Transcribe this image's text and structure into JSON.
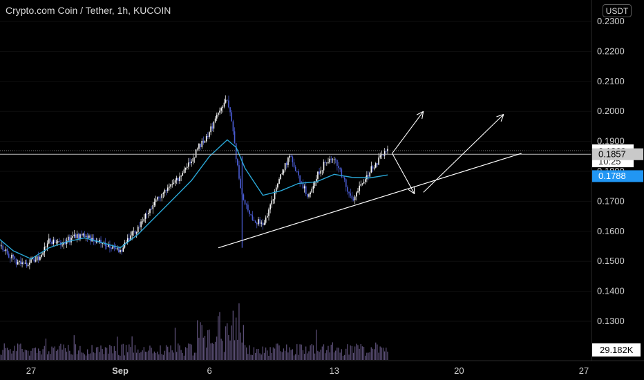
{
  "header": {
    "title": "Crypto.com Coin / Tether, 1h, KUCOIN",
    "currency": "USDT"
  },
  "labels": {
    "last_price": "0.1869",
    "countdown": "10:25",
    "line_price": "0.1857",
    "ma_price": "0.1788",
    "volume": "29.182K"
  },
  "colors": {
    "background": "#000000",
    "candle_up": "#ffffff",
    "candle_down": "#4b5dd6",
    "ma_line": "#2aa8d8",
    "volume_bar": "#7a6a9e",
    "drawings": "#ffffff",
    "ma_badge": "#2196f3",
    "line_badge": "#c9c9c9"
  },
  "chart_data": {
    "type": "candlestick",
    "title": "Crypto.com Coin / Tether, 1h, KUCOIN",
    "y_axis": {
      "side": "right",
      "range": [
        0.1175,
        0.2365
      ],
      "ticks": [
        "0.2300",
        "0.2200",
        "0.2100",
        "0.2000",
        "0.1900",
        "0.1800",
        "0.1700",
        "0.1600",
        "0.1500",
        "0.1400",
        "0.1300"
      ]
    },
    "x_axis": {
      "ticks": [
        "27",
        "Sep",
        "6",
        "13",
        "20",
        "27"
      ]
    },
    "price_path": [
      {
        "date": "Aug 25 00:00",
        "price": 0.1575
      },
      {
        "date": "Aug 25 12:00",
        "price": 0.154
      },
      {
        "date": "Aug 26 00:00",
        "price": 0.1505
      },
      {
        "date": "Aug 26 12:00",
        "price": 0.149
      },
      {
        "date": "Aug 27 00:00",
        "price": 0.15
      },
      {
        "date": "Aug 27 12:00",
        "price": 0.1515
      },
      {
        "date": "Aug 28 00:00",
        "price": 0.1565
      },
      {
        "date": "Aug 28 12:00",
        "price": 0.156
      },
      {
        "date": "Aug 29 00:00",
        "price": 0.157
      },
      {
        "date": "Aug 29 12:00",
        "price": 0.158
      },
      {
        "date": "Aug 30 00:00",
        "price": 0.159
      },
      {
        "date": "Aug 30 12:00",
        "price": 0.157
      },
      {
        "date": "Aug 31 00:00",
        "price": 0.156
      },
      {
        "date": "Aug 31 12:00",
        "price": 0.1545
      },
      {
        "date": "Sep 1 00:00",
        "price": 0.153
      },
      {
        "date": "Sep 1 12:00",
        "price": 0.158
      },
      {
        "date": "Sep 2 00:00",
        "price": 0.161
      },
      {
        "date": "Sep 2 12:00",
        "price": 0.166
      },
      {
        "date": "Sep 3 00:00",
        "price": 0.17
      },
      {
        "date": "Sep 3 12:00",
        "price": 0.174
      },
      {
        "date": "Sep 4 00:00",
        "price": 0.176
      },
      {
        "date": "Sep 4 12:00",
        "price": 0.179
      },
      {
        "date": "Sep 5 00:00",
        "price": 0.184
      },
      {
        "date": "Sep 5 12:00",
        "price": 0.189
      },
      {
        "date": "Sep 6 00:00",
        "price": 0.193
      },
      {
        "date": "Sep 6 12:00",
        "price": 0.2
      },
      {
        "date": "Sep 7 00:00",
        "price": 0.204
      },
      {
        "date": "Sep 7 06:00",
        "price": 0.196
      },
      {
        "date": "Sep 7 12:00",
        "price": 0.185
      },
      {
        "date": "Sep 7 18:00",
        "price": 0.175
      },
      {
        "date": "Sep 8 00:00",
        "price": 0.169
      },
      {
        "date": "Sep 8 12:00",
        "price": 0.164
      },
      {
        "date": "Sep 9 00:00",
        "price": 0.162
      },
      {
        "date": "Sep 9 12:00",
        "price": 0.17
      },
      {
        "date": "Sep 10 00:00",
        "price": 0.179
      },
      {
        "date": "Sep 10 12:00",
        "price": 0.185
      },
      {
        "date": "Sep 11 00:00",
        "price": 0.178
      },
      {
        "date": "Sep 11 12:00",
        "price": 0.172
      },
      {
        "date": "Sep 12 00:00",
        "price": 0.178
      },
      {
        "date": "Sep 12 12:00",
        "price": 0.183
      },
      {
        "date": "Sep 13 00:00",
        "price": 0.184
      },
      {
        "date": "Sep 13 12:00",
        "price": 0.178
      },
      {
        "date": "Sep 14 00:00",
        "price": 0.17
      },
      {
        "date": "Sep 14 12:00",
        "price": 0.176
      },
      {
        "date": "Sep 15 00:00",
        "price": 0.18
      },
      {
        "date": "Sep 15 12:00",
        "price": 0.184
      },
      {
        "date": "Sep 16 00:00",
        "price": 0.1869
      }
    ],
    "moving_average": [
      {
        "date": "Aug 25 00:00",
        "price": 0.1585
      },
      {
        "date": "Aug 26 00:00",
        "price": 0.1535
      },
      {
        "date": "Aug 27 00:00",
        "price": 0.1508
      },
      {
        "date": "Aug 28 00:00",
        "price": 0.1545
      },
      {
        "date": "Aug 29 00:00",
        "price": 0.1565
      },
      {
        "date": "Aug 30 00:00",
        "price": 0.1578
      },
      {
        "date": "Aug 31 00:00",
        "price": 0.1562
      },
      {
        "date": "Sep 1 00:00",
        "price": 0.1545
      },
      {
        "date": "Sep 2 00:00",
        "price": 0.159
      },
      {
        "date": "Sep 3 00:00",
        "price": 0.165
      },
      {
        "date": "Sep 4 00:00",
        "price": 0.171
      },
      {
        "date": "Sep 5 00:00",
        "price": 0.177
      },
      {
        "date": "Sep 6 00:00",
        "price": 0.185
      },
      {
        "date": "Sep 7 00:00",
        "price": 0.1905
      },
      {
        "date": "Sep 7 12:00",
        "price": 0.188
      },
      {
        "date": "Sep 8 00:00",
        "price": 0.181
      },
      {
        "date": "Sep 9 00:00",
        "price": 0.172
      },
      {
        "date": "Sep 10 00:00",
        "price": 0.1735
      },
      {
        "date": "Sep 11 00:00",
        "price": 0.176
      },
      {
        "date": "Sep 12 00:00",
        "price": 0.1765
      },
      {
        "date": "Sep 13 00:00",
        "price": 0.179
      },
      {
        "date": "Sep 14 00:00",
        "price": 0.178
      },
      {
        "date": "Sep 15 00:00",
        "price": 0.1778
      },
      {
        "date": "Sep 16 00:00",
        "price": 0.1788
      }
    ],
    "trendline": [
      {
        "date": "Sep 6 12:00",
        "price": 0.1545
      },
      {
        "date": "Sep 23 12:00",
        "price": 0.186
      }
    ],
    "horizontal_line": 0.1857,
    "arrows": [
      {
        "from": {
          "date": "Sep 16 06:00",
          "price": 0.186
        },
        "to": {
          "date": "Sep 18 00:00",
          "price": 0.2
        }
      },
      {
        "from": {
          "date": "Sep 16 06:00",
          "price": 0.186
        },
        "to": {
          "date": "Sep 17 12:00",
          "price": 0.1725
        }
      },
      {
        "from": {
          "date": "Sep 18 00:00",
          "price": 0.173
        },
        "to": {
          "date": "Sep 22 12:00",
          "price": 0.199
        }
      }
    ],
    "volume_last": "29.182K"
  }
}
